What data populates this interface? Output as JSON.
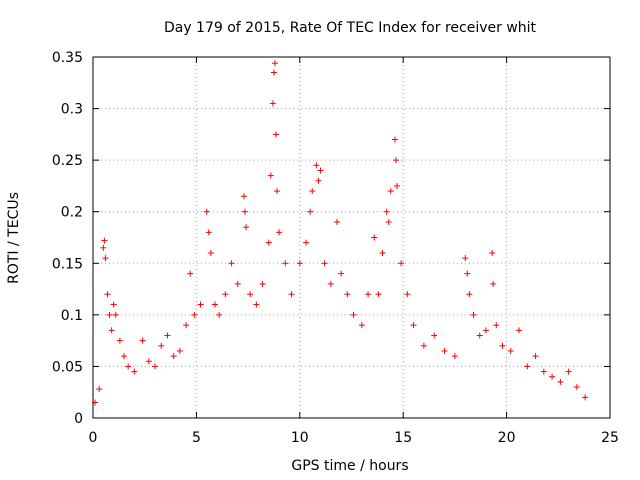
{
  "chart_data": {
    "type": "scatter",
    "title": "Day 179 of 2015, Rate Of TEC Index for receiver whit",
    "xlabel": "GPS time / hours",
    "ylabel": "ROTI / TECUs",
    "xlim": [
      0,
      25
    ],
    "ylim": [
      0,
      0.35
    ],
    "xticks": [
      0,
      5,
      10,
      15,
      20,
      25
    ],
    "xtick_labels": [
      "0",
      "5",
      "10",
      "15",
      "20",
      "25"
    ],
    "yticks": [
      0,
      0.05,
      0.1,
      0.15,
      0.2,
      0.25,
      0.3,
      0.35
    ],
    "ytick_labels": [
      "0",
      "0.05",
      "0.1",
      "0.15",
      "0.2",
      "0.25",
      "0.3",
      "0.35"
    ],
    "grid": true,
    "marker": "+",
    "marker_color": "#ff0000",
    "series": [
      {
        "name": "ROTI",
        "points": [
          [
            0.1,
            0.015
          ],
          [
            0.3,
            0.028
          ],
          [
            0.5,
            0.165
          ],
          [
            0.55,
            0.172
          ],
          [
            0.6,
            0.155
          ],
          [
            0.7,
            0.12
          ],
          [
            0.8,
            0.1
          ],
          [
            0.9,
            0.085
          ],
          [
            1.0,
            0.11
          ],
          [
            1.1,
            0.1
          ],
          [
            1.3,
            0.075
          ],
          [
            1.5,
            0.06
          ],
          [
            1.7,
            0.05
          ],
          [
            2.0,
            0.045
          ],
          [
            2.4,
            0.075
          ],
          [
            2.7,
            0.055
          ],
          [
            3.0,
            0.05
          ],
          [
            3.3,
            0.07
          ],
          [
            3.6,
            0.08
          ],
          [
            3.9,
            0.06
          ],
          [
            4.2,
            0.065
          ],
          [
            4.5,
            0.09
          ],
          [
            4.7,
            0.14
          ],
          [
            4.9,
            0.1
          ],
          [
            5.2,
            0.11
          ],
          [
            5.5,
            0.2
          ],
          [
            5.6,
            0.18
          ],
          [
            5.7,
            0.16
          ],
          [
            5.9,
            0.11
          ],
          [
            6.1,
            0.1
          ],
          [
            6.4,
            0.12
          ],
          [
            6.7,
            0.15
          ],
          [
            7.0,
            0.13
          ],
          [
            7.3,
            0.215
          ],
          [
            7.35,
            0.2
          ],
          [
            7.4,
            0.185
          ],
          [
            7.6,
            0.12
          ],
          [
            7.9,
            0.11
          ],
          [
            8.2,
            0.13
          ],
          [
            8.5,
            0.17
          ],
          [
            8.6,
            0.235
          ],
          [
            8.7,
            0.305
          ],
          [
            8.75,
            0.335
          ],
          [
            8.8,
            0.344
          ],
          [
            8.85,
            0.275
          ],
          [
            8.9,
            0.22
          ],
          [
            9.0,
            0.18
          ],
          [
            9.3,
            0.15
          ],
          [
            9.6,
            0.12
          ],
          [
            10.0,
            0.15
          ],
          [
            10.3,
            0.17
          ],
          [
            10.5,
            0.2
          ],
          [
            10.6,
            0.22
          ],
          [
            10.8,
            0.245
          ],
          [
            10.9,
            0.23
          ],
          [
            11.0,
            0.24
          ],
          [
            11.2,
            0.15
          ],
          [
            11.5,
            0.13
          ],
          [
            11.8,
            0.19
          ],
          [
            12.0,
            0.14
          ],
          [
            12.3,
            0.12
          ],
          [
            12.6,
            0.1
          ],
          [
            13.0,
            0.09
          ],
          [
            13.3,
            0.12
          ],
          [
            13.6,
            0.175
          ],
          [
            13.8,
            0.12
          ],
          [
            14.0,
            0.16
          ],
          [
            14.2,
            0.2
          ],
          [
            14.3,
            0.19
          ],
          [
            14.4,
            0.22
          ],
          [
            14.6,
            0.27
          ],
          [
            14.65,
            0.25
          ],
          [
            14.7,
            0.225
          ],
          [
            14.9,
            0.15
          ],
          [
            15.2,
            0.12
          ],
          [
            15.5,
            0.09
          ],
          [
            16.0,
            0.07
          ],
          [
            16.5,
            0.08
          ],
          [
            17.0,
            0.065
          ],
          [
            17.5,
            0.06
          ],
          [
            18.0,
            0.155
          ],
          [
            18.1,
            0.14
          ],
          [
            18.2,
            0.12
          ],
          [
            18.4,
            0.1
          ],
          [
            18.7,
            0.08
          ],
          [
            19.0,
            0.085
          ],
          [
            19.3,
            0.16
          ],
          [
            19.35,
            0.13
          ],
          [
            19.5,
            0.09
          ],
          [
            19.8,
            0.07
          ],
          [
            20.2,
            0.065
          ],
          [
            20.6,
            0.085
          ],
          [
            21.0,
            0.05
          ],
          [
            21.4,
            0.06
          ],
          [
            21.8,
            0.045
          ],
          [
            22.2,
            0.04
          ],
          [
            22.6,
            0.035
          ],
          [
            23.0,
            0.045
          ],
          [
            23.4,
            0.03
          ],
          [
            23.8,
            0.02
          ]
        ]
      }
    ]
  }
}
